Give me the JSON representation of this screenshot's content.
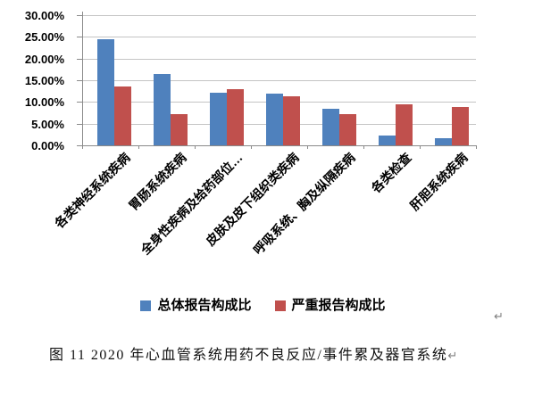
{
  "chart_data": {
    "type": "bar",
    "title": "",
    "xlabel": "",
    "ylabel": "",
    "categories": [
      "各类神经系统疾病",
      "胃肠系统疾病",
      "全身性疾病及给药部位…",
      "皮肤及皮下组织类疾病",
      "呼吸系统、胸及纵隔疾病",
      "各类检查",
      "肝胆系统疾病"
    ],
    "series": [
      {
        "name": "总体报告构成比",
        "color": "#4F81BD",
        "values": [
          24.5,
          16.4,
          12.2,
          12.0,
          8.4,
          2.3,
          1.6
        ]
      },
      {
        "name": "严重报告构成比",
        "color": "#C0504D",
        "values": [
          13.5,
          7.2,
          13.0,
          11.2,
          7.2,
          9.5,
          8.9
        ]
      }
    ],
    "ylim": [
      0,
      30
    ],
    "y_tick_step": 5,
    "y_tick_labels": [
      "30.00%",
      "25.00%",
      "20.00%",
      "15.00%",
      "10.00%",
      "5.00%",
      "0.00%"
    ],
    "grid": true,
    "legend_position": "bottom",
    "x_label_rotation_deg": 45
  },
  "colors": {
    "gridline": "#c4c4c4",
    "axis": "#8a8a8a",
    "paragraph_mark": "#7f7f7f"
  },
  "document": {
    "caption_text": "图 11  2020 年心血管系统用药不良反应/事件累及器官系统",
    "caption_paragraph_mark": "↵",
    "empty_line_paragraph_mark": "↵"
  }
}
